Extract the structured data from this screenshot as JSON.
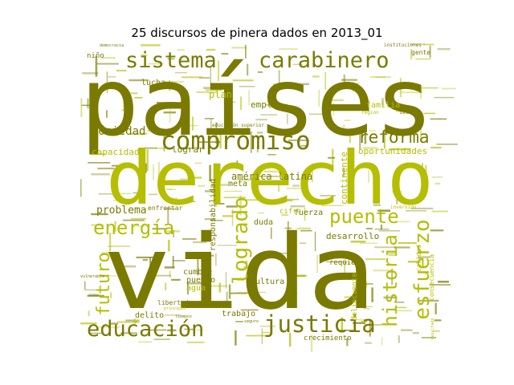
{
  "chart_data": {
    "type": "wordcloud",
    "title": "25 discursos de pinera dados en 2013_01",
    "colors": {
      "dark": "#7a7a00",
      "light": "#b5be00"
    },
    "words": [
      {
        "text": "países",
        "weight": 100,
        "tone": "dark",
        "orientation": "horizontal"
      },
      {
        "text": "vida",
        "weight": 98,
        "tone": "dark",
        "orientation": "horizontal"
      },
      {
        "text": "derecho",
        "weight": 86,
        "tone": "light",
        "orientation": "horizontal"
      },
      {
        "text": "sistema",
        "weight": 30,
        "tone": "dark",
        "orientation": "horizontal"
      },
      {
        "text": "carabinero",
        "weight": 30,
        "tone": "dark",
        "orientation": "horizontal"
      },
      {
        "text": "compromiso",
        "weight": 34,
        "tone": "dark",
        "orientation": "horizontal"
      },
      {
        "text": "educación",
        "weight": 28,
        "tone": "dark",
        "orientation": "horizontal"
      },
      {
        "text": "justicia",
        "weight": 30,
        "tone": "dark",
        "orientation": "horizontal"
      },
      {
        "text": "energía",
        "weight": 24,
        "tone": "light",
        "orientation": "horizontal"
      },
      {
        "text": "puente",
        "weight": 24,
        "tone": "light",
        "orientation": "horizontal"
      },
      {
        "text": "reforma",
        "weight": 22,
        "tone": "dark",
        "orientation": "horizontal"
      },
      {
        "text": "logrado",
        "weight": 26,
        "tone": "light",
        "orientation": "vertical"
      },
      {
        "text": "esfuerzo",
        "weight": 26,
        "tone": "light",
        "orientation": "vertical"
      },
      {
        "text": "historia",
        "weight": 24,
        "tone": "light",
        "orientation": "vertical"
      },
      {
        "text": "futuro",
        "weight": 22,
        "tone": "light",
        "orientation": "vertical"
      },
      {
        "text": "problema",
        "weight": 13,
        "tone": "dark",
        "orientation": "horizontal"
      },
      {
        "text": "sociedad",
        "weight": 14,
        "tone": "dark",
        "orientation": "horizontal"
      },
      {
        "text": "capacidad",
        "weight": 10,
        "tone": "light",
        "orientation": "horizontal"
      },
      {
        "text": "oportunidades",
        "weight": 11,
        "tone": "light",
        "orientation": "horizontal"
      },
      {
        "text": "américa latina",
        "weight": 12,
        "tone": "dark",
        "orientation": "horizontal"
      },
      {
        "text": "empleo",
        "weight": 11,
        "tone": "dark",
        "orientation": "horizontal"
      },
      {
        "text": "familia",
        "weight": 10,
        "tone": "light",
        "orientation": "horizontal"
      },
      {
        "text": "plan",
        "weight": 12,
        "tone": "light",
        "orientation": "horizontal"
      },
      {
        "text": "lucha",
        "weight": 10,
        "tone": "dark",
        "orientation": "horizontal"
      },
      {
        "text": "lograr",
        "weight": 11,
        "tone": "dark",
        "orientation": "horizontal"
      },
      {
        "text": "continente",
        "weight": 11,
        "tone": "light",
        "orientation": "vertical"
      },
      {
        "text": "responsabilidad",
        "weight": 10,
        "tone": "dark",
        "orientation": "vertical"
      },
      {
        "text": "meta",
        "weight": 10,
        "tone": "dark",
        "orientation": "horizontal"
      },
      {
        "text": "fuerza",
        "weight": 10,
        "tone": "dark",
        "orientation": "horizontal"
      },
      {
        "text": "duda",
        "weight": 10,
        "tone": "dark",
        "orientation": "horizontal"
      },
      {
        "text": "cifre",
        "weight": 9,
        "tone": "light",
        "orientation": "horizontal"
      },
      {
        "text": "cultura",
        "weight": 10,
        "tone": "dark",
        "orientation": "horizontal"
      },
      {
        "text": "desarrollo",
        "weight": 11,
        "tone": "dark",
        "orientation": "horizontal"
      },
      {
        "text": "cumbre",
        "weight": 10,
        "tone": "dark",
        "orientation": "horizontal"
      },
      {
        "text": "pueblo",
        "weight": 10,
        "tone": "dark",
        "orientation": "horizontal"
      },
      {
        "text": "agua",
        "weight": 10,
        "tone": "light",
        "orientation": "horizontal"
      },
      {
        "text": "libertad",
        "weight": 8,
        "tone": "dark",
        "orientation": "horizontal"
      },
      {
        "text": "delito",
        "weight": 10,
        "tone": "dark",
        "orientation": "horizontal"
      },
      {
        "text": "trabajo",
        "weight": 10,
        "tone": "dark",
        "orientation": "horizontal"
      },
      {
        "text": "crecimiento",
        "weight": 9,
        "tone": "dark",
        "orientation": "horizontal"
      },
      {
        "text": "requiere",
        "weight": 9,
        "tone": "dark",
        "orientation": "horizontal"
      },
      {
        "text": "delincuente",
        "weight": 9,
        "tone": "light",
        "orientation": "vertical"
      },
      {
        "text": "calidad",
        "weight": 8,
        "tone": "light",
        "orientation": "vertical"
      },
      {
        "text": "consecuencia",
        "weight": 8,
        "tone": "light",
        "orientation": "vertical"
      },
      {
        "text": "enfrentar",
        "weight": 8,
        "tone": "dark",
        "orientation": "horizontal"
      },
      {
        "text": "niño",
        "weight": 9,
        "tone": "dark",
        "orientation": "horizontal"
      },
      {
        "text": "gente",
        "weight": 8,
        "tone": "dark",
        "orientation": "horizontal"
      },
      {
        "text": "beca",
        "weight": 6,
        "tone": "dark",
        "orientation": "horizontal"
      },
      {
        "text": "inversión",
        "weight": 6,
        "tone": "light",
        "orientation": "horizontal"
      },
      {
        "text": "región",
        "weight": 6,
        "tone": "light",
        "orientation": "horizontal"
      },
      {
        "text": "instituciones",
        "weight": 6,
        "tone": "dark",
        "orientation": "horizontal"
      },
      {
        "text": "educación superior",
        "weight": 6,
        "tone": "dark",
        "orientation": "horizontal"
      },
      {
        "text": "vulnerable",
        "weight": 5,
        "tone": "dark",
        "orientation": "horizontal"
      },
      {
        "text": "principio",
        "weight": 5,
        "tone": "light",
        "orientation": "horizontal"
      },
      {
        "text": "tiempos",
        "weight": 5,
        "tone": "dark",
        "orientation": "horizontal"
      },
      {
        "text": "seguro",
        "weight": 5,
        "tone": "dark",
        "orientation": "horizontal"
      },
      {
        "text": "resultado",
        "weight": 5,
        "tone": "light",
        "orientation": "vertical"
      },
      {
        "text": "democracia",
        "weight": 5,
        "tone": "dark",
        "orientation": "horizontal"
      }
    ]
  }
}
